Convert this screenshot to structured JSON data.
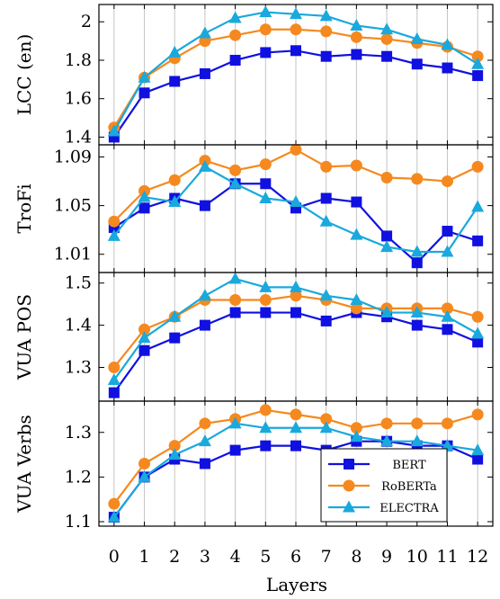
{
  "chart_data": {
    "type": "line",
    "xlabel": "Layers",
    "x": [
      0,
      1,
      2,
      3,
      4,
      5,
      6,
      7,
      8,
      9,
      10,
      11,
      12
    ],
    "xlim": [
      -0.5,
      12.5
    ],
    "grid": "vertical",
    "legend": {
      "panel": 3,
      "placement": "bottom-right",
      "entries": [
        "BERT",
        "RoBERTa",
        "ELECTRA"
      ]
    },
    "styles": {
      "BERT": {
        "color": "#1010e0",
        "marker": "square"
      },
      "RoBERTa": {
        "color": "#f5891f",
        "marker": "circle"
      },
      "ELECTRA": {
        "color": "#19a9dc",
        "marker": "triangle"
      }
    },
    "panels": [
      {
        "ylabel": "LCC (en)",
        "ylim": [
          1.36,
          2.09
        ],
        "yticks": [
          1.4,
          1.6,
          1.8,
          2.0
        ],
        "ytick_labels": [
          "1.4",
          "1.6",
          "1.8",
          "2"
        ],
        "series": [
          {
            "name": "BERT",
            "values": [
              1.4,
              1.63,
              1.69,
              1.73,
              1.8,
              1.84,
              1.85,
              1.82,
              1.83,
              1.82,
              1.78,
              1.76,
              1.72
            ]
          },
          {
            "name": "RoBERTa",
            "values": [
              1.45,
              1.71,
              1.81,
              1.9,
              1.93,
              1.96,
              1.96,
              1.95,
              1.92,
              1.91,
              1.89,
              1.87,
              1.82
            ]
          },
          {
            "name": "ELECTRA",
            "values": [
              1.43,
              1.71,
              1.84,
              1.94,
              2.02,
              2.05,
              2.04,
              2.03,
              1.98,
              1.96,
              1.91,
              1.88,
              1.78
            ]
          }
        ]
      },
      {
        "ylabel": "TroFi",
        "ylim": [
          0.995,
          1.1
        ],
        "yticks": [
          1.01,
          1.05,
          1.09
        ],
        "ytick_labels": [
          "1.01",
          "1.05",
          "1.09"
        ],
        "series": [
          {
            "name": "BERT",
            "values": [
              1.032,
              1.048,
              1.056,
              1.05,
              1.068,
              1.068,
              1.048,
              1.056,
              1.053,
              1.025,
              1.003,
              1.029,
              1.021
            ]
          },
          {
            "name": "RoBERTa",
            "values": [
              1.037,
              1.062,
              1.071,
              1.087,
              1.079,
              1.084,
              1.096,
              1.082,
              1.083,
              1.073,
              1.072,
              1.07,
              1.082
            ]
          },
          {
            "name": "ELECTRA",
            "values": [
              1.025,
              1.057,
              1.053,
              1.082,
              1.068,
              1.056,
              1.053,
              1.037,
              1.026,
              1.016,
              1.012,
              1.012,
              1.049
            ]
          }
        ]
      },
      {
        "ylabel": "VUA POS",
        "ylim": [
          1.22,
          1.525
        ],
        "yticks": [
          1.3,
          1.4,
          1.5
        ],
        "ytick_labels": [
          "1.3",
          "1.4",
          "1.5"
        ],
        "series": [
          {
            "name": "BERT",
            "values": [
              1.24,
              1.34,
              1.37,
              1.4,
              1.43,
              1.43,
              1.43,
              1.41,
              1.43,
              1.42,
              1.4,
              1.39,
              1.36
            ]
          },
          {
            "name": "RoBERTa",
            "values": [
              1.3,
              1.39,
              1.42,
              1.46,
              1.46,
              1.46,
              1.47,
              1.46,
              1.44,
              1.44,
              1.44,
              1.44,
              1.42
            ]
          },
          {
            "name": "ELECTRA",
            "values": [
              1.27,
              1.37,
              1.42,
              1.47,
              1.51,
              1.49,
              1.49,
              1.47,
              1.46,
              1.43,
              1.43,
              1.42,
              1.38
            ]
          }
        ]
      },
      {
        "ylabel": "VUA Verbs",
        "ylim": [
          1.09,
          1.37
        ],
        "yticks": [
          1.1,
          1.2,
          1.3
        ],
        "ytick_labels": [
          "1.1",
          "1.2",
          "1.3"
        ],
        "series": [
          {
            "name": "BERT",
            "values": [
              1.11,
              1.2,
              1.24,
              1.23,
              1.26,
              1.27,
              1.27,
              1.26,
              1.28,
              1.28,
              1.27,
              1.27,
              1.24
            ]
          },
          {
            "name": "RoBERTa",
            "values": [
              1.14,
              1.23,
              1.27,
              1.32,
              1.33,
              1.35,
              1.34,
              1.33,
              1.31,
              1.32,
              1.32,
              1.32,
              1.34
            ]
          },
          {
            "name": "ELECTRA",
            "values": [
              1.11,
              1.2,
              1.25,
              1.28,
              1.32,
              1.31,
              1.31,
              1.31,
              1.29,
              1.28,
              1.28,
              1.27,
              1.26
            ]
          }
        ]
      }
    ]
  }
}
